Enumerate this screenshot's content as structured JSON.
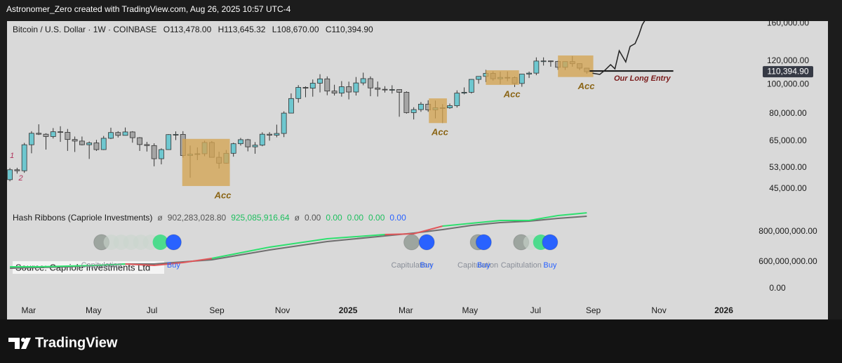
{
  "header": {
    "text": "Astronomer_Zero created with TradingView.com, Aug 26, 2025 10:57 UTC-4"
  },
  "footer": {
    "brand": "TradingView"
  },
  "chart_data": [
    {
      "type": "candlestick",
      "symbol": "Bitcoin / U.S. Dollar · 1W · COINBASE",
      "ohlc_labels": [
        "O113,478.00",
        "H113,645.32",
        "L108,670.00",
        "C110,394.90"
      ],
      "open": [
        48300,
        52100,
        51700,
        63100,
        68900,
        68400,
        67200,
        69700,
        69400,
        65700,
        64900,
        63100,
        64000,
        60800,
        66300,
        69300,
        67800,
        69600,
        66600,
        63200,
        62700,
        56700,
        60800,
        68200,
        68300,
        58100,
        58700,
        58900,
        64200,
        57300,
        54800,
        59100,
        63600,
        65600,
        62100,
        62900,
        68400,
        67900,
        68800,
        80400,
        89900,
        97900,
        97300,
        101100,
        104500,
        95200,
        93700,
        98400,
        94500,
        101300,
        104700,
        97500,
        96500,
        96100,
        96300,
        94300,
        80700,
        82600,
        86100,
        82400,
        83800,
        83700,
        85100,
        93700,
        94300,
        104100,
        106500,
        109000,
        104600,
        105700,
        105500,
        100900,
        108400,
        109200,
        119800,
        119900,
        119400,
        114200,
        119300,
        117400,
        113478
      ],
      "high": [
        52800,
        52900,
        64000,
        70000,
        73800,
        68900,
        71700,
        72700,
        71200,
        67200,
        67200,
        64700,
        65500,
        67500,
        71900,
        70000,
        72000,
        70000,
        66900,
        64500,
        63800,
        61400,
        68400,
        69900,
        70000,
        62700,
        61800,
        65100,
        64900,
        59800,
        60600,
        64100,
        66500,
        66000,
        64400,
        69400,
        69500,
        73600,
        81500,
        93500,
        99600,
        98700,
        104000,
        108300,
        106500,
        99900,
        102700,
        102300,
        106000,
        109600,
        106500,
        102400,
        98800,
        99500,
        96500,
        95000,
        84100,
        87500,
        88700,
        88500,
        86100,
        86500,
        95700,
        97900,
        104300,
        106700,
        112000,
        110700,
        110400,
        110600,
        106400,
        108500,
        110500,
        123200,
        123200,
        120200,
        120000,
        119300,
        124500,
        117600,
        113645.32
      ],
      "low": [
        47700,
        50600,
        50900,
        59100,
        68000,
        60800,
        66200,
        64500,
        60200,
        59700,
        62800,
        56600,
        60200,
        60600,
        65900,
        66700,
        67700,
        64100,
        60200,
        59900,
        53500,
        54300,
        60700,
        65400,
        57200,
        49000,
        56100,
        57800,
        57200,
        52600,
        54600,
        57600,
        62700,
        60000,
        58900,
        62400,
        65100,
        66800,
        66900,
        80300,
        87100,
        90800,
        91200,
        94200,
        92200,
        92000,
        91200,
        89300,
        92000,
        99500,
        91500,
        91300,
        94100,
        93400,
        78200,
        80100,
        76600,
        81200,
        81200,
        77200,
        74500,
        83100,
        83900,
        92800,
        93400,
        100700,
        102000,
        103100,
        100400,
        102700,
        98200,
        98400,
        105200,
        107500,
        115700,
        114700,
        112000,
        111900,
        114700,
        111700,
        108670
      ],
      "close": [
        52100,
        51700,
        63100,
        68900,
        68400,
        67200,
        69700,
        69400,
        65700,
        64900,
        63100,
        64000,
        60800,
        66300,
        69300,
        67800,
        69600,
        66600,
        63200,
        62700,
        56700,
        60800,
        68200,
        68300,
        58100,
        58700,
        58900,
        64200,
        57300,
        54800,
        59100,
        63600,
        65600,
        62100,
        62900,
        68400,
        67900,
        68800,
        80400,
        89900,
        97900,
        97300,
        101100,
        104500,
        95200,
        93700,
        98400,
        94500,
        101300,
        104700,
        97500,
        96500,
        96100,
        96300,
        94300,
        80700,
        82600,
        86100,
        82400,
        83800,
        83700,
        85100,
        93700,
        94300,
        104100,
        106500,
        109000,
        104600,
        105700,
        105500,
        100900,
        108400,
        109200,
        119800,
        119900,
        119400,
        114200,
        119300,
        117400,
        113500,
        110394.9
      ],
      "up_color": "#6ec7cf",
      "down_color": "#a5a5a5",
      "log_scale": true,
      "xlim": [
        -0.4,
        104.2
      ],
      "ylim": [
        40200,
        162700
      ],
      "yticks": [
        {
          "value": 160000,
          "label": "160,000.00"
        },
        {
          "value": 120000,
          "label": "120,000.00"
        },
        {
          "value": 100000,
          "label": "100,000.00"
        },
        {
          "value": 80000,
          "label": "80,000.00"
        },
        {
          "value": 65000,
          "label": "65,000.00"
        },
        {
          "value": 53000,
          "label": "53,000.00"
        },
        {
          "value": 45000,
          "label": "45,000.00"
        }
      ],
      "last_price": {
        "value": 110394.9,
        "label": "110,394.90"
      },
      "box_color": "#d4a452",
      "annotations": [
        {
          "type": "box",
          "x": [
            23.9,
            30.5
          ],
          "y": [
            66000,
            46000
          ],
          "label": "Acc"
        },
        {
          "type": "box",
          "x": [
            58.1,
            60.6
          ],
          "y": [
            90000,
            74500
          ],
          "label": "Acc"
        },
        {
          "type": "box",
          "x": [
            66.0,
            70.6
          ],
          "y": [
            111600,
            99800
          ],
          "label": "Acc"
        },
        {
          "type": "box",
          "x": [
            76.0,
            80.9
          ],
          "y": [
            125000,
            106000
          ],
          "label": "Acc"
        },
        {
          "type": "hline",
          "x": [
            80.4,
            92.0
          ],
          "y": 111000,
          "label": "Our Long Entry"
        },
        {
          "type": "text",
          "x": 0.0,
          "y": 57900,
          "label": "1"
        },
        {
          "type": "text",
          "x": 1.2,
          "y": 48800,
          "label": "2"
        },
        {
          "type": "path",
          "x": [
            80.8,
            81.8,
            82.5,
            83.3,
            83.9,
            84.2,
            84.5,
            85.4,
            86.0,
            86.7,
            87.2,
            87.7,
            88.3
          ],
          "y": [
            109200,
            108100,
            111600,
            116500,
            112800,
            121000,
            129700,
            119000,
            134000,
            136900,
            146000,
            158300,
            167000
          ]
        }
      ]
    },
    {
      "type": "line",
      "title": "Hash Ribbons (Capriole Investments)",
      "legend_symbol": "ø",
      "legend_values": [
        {
          "value": 902283028.8,
          "label": "902,283,028.80",
          "color": "#555555"
        },
        {
          "value": 925085916.64,
          "label": "925,085,916.64",
          "color": "#1fbf5f"
        }
      ],
      "zero_values": [
        {
          "value": 0,
          "label": "0.00",
          "color": "#555555"
        },
        {
          "value": 0,
          "label": "0.00",
          "color": "#1fbf5f"
        },
        {
          "value": 0,
          "label": "0.00",
          "color": "#1fbf5f"
        },
        {
          "value": 0,
          "label": "0.00",
          "color": "#1fbf5f"
        },
        {
          "value": 0,
          "label": "0.00",
          "color": "#2962ff"
        }
      ],
      "x": [
        0,
        4,
        8,
        12,
        16,
        20,
        24,
        28,
        32,
        36,
        40,
        44,
        48,
        52,
        56,
        60,
        64,
        68,
        72,
        76,
        80
      ],
      "series": [
        {
          "color": "#6f6f6f",
          "values": [
            558100000,
            562800000,
            567400000,
            576700000,
            586000000,
            586000000,
            600000000,
            614000000,
            646500000,
            679100000,
            707000000,
            734900000,
            753500000,
            772100000,
            790700000,
            814000000,
            841900000,
            860500000,
            869800000,
            888400000,
            902283028.8
          ]
        },
        {
          "color": "#2ee06f",
          "values": [
            567400000,
            567400000,
            572100000,
            576700000,
            586000000,
            576700000,
            595300000,
            623300000,
            660500000,
            697700000,
            725600000,
            753500000,
            767400000,
            781400000,
            786000000,
            837200000,
            855800000,
            874400000,
            874400000,
            907000000,
            925085916.64
          ]
        }
      ],
      "cross_color": "#e0575a",
      "xlim": [
        -0.4,
        104.2
      ],
      "ylim": [
        335000000,
        949000000
      ],
      "yticks": [
        {
          "value": 800000000,
          "label": "800,000,000.00"
        },
        {
          "value": 600000000,
          "label": "600,000,000.00"
        }
      ],
      "y2lim": [
        -1,
        5.95
      ],
      "y2ticks": [
        {
          "value": 0,
          "label": "0.00"
        }
      ],
      "xticks": [
        {
          "value": 2.6,
          "label": "Mar"
        },
        {
          "value": 11.6,
          "label": "May"
        },
        {
          "value": 19.7,
          "label": "Jul"
        },
        {
          "value": 28.7,
          "label": "Sep"
        },
        {
          "value": 37.8,
          "label": "Nov"
        },
        {
          "value": 46.9,
          "label": "2025",
          "bold": true
        },
        {
          "value": 54.9,
          "label": "Mar"
        },
        {
          "value": 63.8,
          "label": "May"
        },
        {
          "value": 72.9,
          "label": "Jul"
        },
        {
          "value": 80.9,
          "label": "Sep"
        },
        {
          "value": 90.0,
          "label": "Nov"
        },
        {
          "value": 99.0,
          "label": "2026",
          "bold": true
        }
      ],
      "source": "Source: Capriole Investments Ltd",
      "signals": [
        {
          "x": 12.7,
          "label": "Capitulation",
          "color": "#9da59f",
          "text_color": "#8a8f99"
        },
        {
          "x": 22.7,
          "label": "Buy",
          "color": "#2962ff",
          "text_color": "#2962ff"
        },
        {
          "x": 55.7,
          "label": "Capitulation",
          "color": "#9da59f",
          "text_color": "#8a8f99"
        },
        {
          "x": 57.8,
          "label": "Buy",
          "color": "#2962ff",
          "text_color": "#2962ff"
        },
        {
          "x": 64.9,
          "label": "Capitulation",
          "color": "#9da59f",
          "text_color": "#8a8f99"
        },
        {
          "x": 65.7,
          "label": "Buy",
          "color": "#2962ff",
          "text_color": "#2962ff"
        },
        {
          "x": 70.9,
          "label": "Capitulation",
          "color": "#9da59f",
          "text_color": "#8a8f99"
        },
        {
          "x": 74.9,
          "label": "Buy",
          "color": "#2962ff",
          "text_color": "#2962ff"
        }
      ]
    }
  ]
}
